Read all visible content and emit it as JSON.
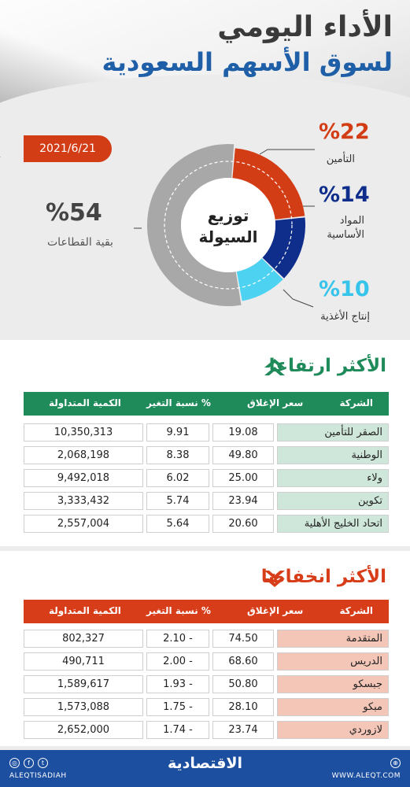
{
  "header": {
    "title_line1": "الأداء اليومي",
    "title_line2": "لسوق الأسهم السعودية"
  },
  "date": "2021/6/21",
  "liquidity": {
    "center_line1": "توزيع",
    "center_line2": "السيولة",
    "segments": [
      {
        "pct": "%22",
        "label": "التأمين",
        "value": 22,
        "color": "#d33d16"
      },
      {
        "pct": "%14",
        "label_line1": "المواد",
        "label_line2": "الأساسية",
        "value": 14,
        "color": "#0f2e8c"
      },
      {
        "pct": "%10",
        "label": "إنتاج الأغذية",
        "value": 10,
        "color": "#4dd2f2"
      },
      {
        "pct": "%54",
        "label": "بقية القطاعات",
        "value": 54,
        "color": "#a8a8a8"
      }
    ]
  },
  "gainers": {
    "title": "الأكثر ارتفاعا",
    "header_color": "#1f8a5a",
    "columns": [
      "الشركة",
      "سعر الإغلاق",
      "نسبة التغير %",
      "الكمية المتداولة"
    ],
    "rows": [
      {
        "company": "الصقر للتأمين",
        "close": "19.08",
        "change": "9.91",
        "volume": "10,350,313"
      },
      {
        "company": "الوطنية",
        "close": "49.80",
        "change": "8.38",
        "volume": "2,068,198"
      },
      {
        "company": "ولاء",
        "close": "25.00",
        "change": "6.02",
        "volume": "9,492,018"
      },
      {
        "company": "تكوين",
        "close": "23.94",
        "change": "5.74",
        "volume": "3,333,432"
      },
      {
        "company": "اتحاد الخليج الأهلية",
        "close": "20.60",
        "change": "5.64",
        "volume": "2,557,004"
      }
    ]
  },
  "losers": {
    "title": "الأكثر انخفاضا",
    "header_color": "#d83d1a",
    "columns": [
      "الشركة",
      "سعر الإغلاق",
      "نسبة التغير %",
      "الكمية المتداولة"
    ],
    "rows": [
      {
        "company": "المتقدمة",
        "close": "74.50",
        "change": "2.10 -",
        "volume": "802,327"
      },
      {
        "company": "الدريس",
        "close": "68.60",
        "change": "2.00 -",
        "volume": "490,711"
      },
      {
        "company": "جبسكو",
        "close": "50.80",
        "change": "1.93 -",
        "volume": "1,589,617"
      },
      {
        "company": "مبكو",
        "close": "28.10",
        "change": "1.75 -",
        "volume": "1,573,088"
      },
      {
        "company": "لازوردي",
        "close": "23.74",
        "change": "1.74 -",
        "volume": "2,652,000"
      }
    ]
  },
  "footer": {
    "brand": "الاقتصادية",
    "handle": "ALEQTISADIAH",
    "site": "WWW.ALEQT.COM"
  }
}
